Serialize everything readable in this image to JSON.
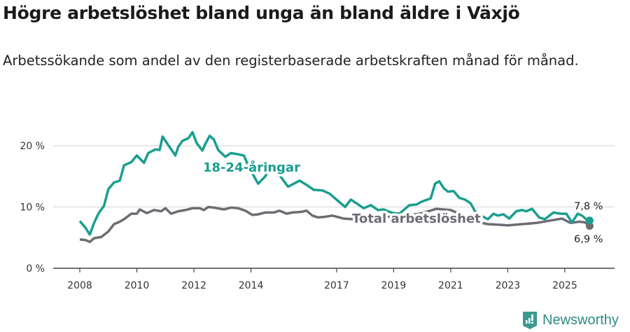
{
  "title": "Högre arbetslöshet bland unga än bland äldre i Växjö",
  "subtitle": "Arbetssökande som andel av den registerbaserade arbetskraften månad för månad.",
  "brand": "Newsworthy",
  "colors": {
    "youth": "#1a9e8f",
    "total": "#6e6c72",
    "grid": "#e0e0e0",
    "brand": "#2f8c83"
  },
  "chart_data": {
    "type": "line",
    "ylim": [
      0,
      22
    ],
    "xlim": [
      2007.6,
      2026.6
    ],
    "yticks": [
      {
        "v": 0,
        "label": "0 %"
      },
      {
        "v": 10,
        "label": "10 %"
      },
      {
        "v": 20,
        "label": "20 %"
      }
    ],
    "xticks": [
      {
        "v": 2008,
        "label": "2008"
      },
      {
        "v": 2010,
        "label": "2010"
      },
      {
        "v": 2012,
        "label": "2012"
      },
      {
        "v": 2014,
        "label": "2014"
      },
      {
        "v": 2017,
        "label": "2017"
      },
      {
        "v": 2019,
        "label": "2019"
      },
      {
        "v": 2021,
        "label": "2021"
      },
      {
        "v": 2023,
        "label": "2023"
      },
      {
        "v": 2025,
        "label": "2025"
      }
    ],
    "series": [
      {
        "name": "18-24-åringar",
        "end_label": "7,8 %",
        "end_value": 7.8,
        "x": [
          2008,
          2008.2,
          2008.35,
          2008.5,
          2008.65,
          2008.85,
          2009,
          2009.2,
          2009.4,
          2009.55,
          2009.8,
          2010,
          2010.25,
          2010.4,
          2010.65,
          2010.8,
          2010.9,
          2011.1,
          2011.35,
          2011.45,
          2011.6,
          2011.8,
          2011.95,
          2012.1,
          2012.3,
          2012.4,
          2012.55,
          2012.7,
          2012.85,
          2013.1,
          2013.3,
          2013.55,
          2013.75,
          2013.95,
          2014.25,
          2014.5,
          2014.65,
          2015,
          2015.3,
          2015.5,
          2015.7,
          2015.95,
          2016.2,
          2016.5,
          2016.75,
          2017,
          2017.3,
          2017.5,
          2017.7,
          2017.95,
          2018.2,
          2018.45,
          2018.65,
          2018.8,
          2019,
          2019.2,
          2019.55,
          2019.8,
          2020,
          2020.3,
          2020.45,
          2020.6,
          2020.75,
          2020.9,
          2021.1,
          2021.3,
          2021.5,
          2021.7,
          2021.85,
          2022.1,
          2022.3,
          2022.5,
          2022.65,
          2022.85,
          2023.05,
          2023.3,
          2023.5,
          2023.65,
          2023.85,
          2024.1,
          2024.3,
          2024.6,
          2024.85,
          2025.05,
          2025.25,
          2025.45,
          2025.6,
          2025.8,
          2025.87
        ],
        "y": [
          7.7,
          6.6,
          5.5,
          7.4,
          8.9,
          10.2,
          12.9,
          14.0,
          14.3,
          16.8,
          17.3,
          18.4,
          17.2,
          18.8,
          19.4,
          19.3,
          21.5,
          20.1,
          18.4,
          19.8,
          20.8,
          21.2,
          22.2,
          20.4,
          19.2,
          20.3,
          21.6,
          21.0,
          19.3,
          18.2,
          18.8,
          18.6,
          18.4,
          16.3,
          13.8,
          15.0,
          16.3,
          15.2,
          13.3,
          13.8,
          14.3,
          13.6,
          12.8,
          12.7,
          12.2,
          11.2,
          10.0,
          11.2,
          10.6,
          9.8,
          10.3,
          9.5,
          9.6,
          9.3,
          9.0,
          8.9,
          10.3,
          10.4,
          10.9,
          11.4,
          13.8,
          14.2,
          13.1,
          12.5,
          12.6,
          11.5,
          11.2,
          10.6,
          9.3,
          8.5,
          8.0,
          8.9,
          8.6,
          8.8,
          8.1,
          9.3,
          9.5,
          9.3,
          9.7,
          8.3,
          8.0,
          9.1,
          8.9,
          8.9,
          7.5,
          8.9,
          8.6,
          7.8,
          7.8
        ]
      },
      {
        "name": "Total arbetslöshet",
        "end_label": "6,9 %",
        "end_value": 6.9,
        "x": [
          2008,
          2008.2,
          2008.35,
          2008.5,
          2008.75,
          2009,
          2009.2,
          2009.4,
          2009.55,
          2009.8,
          2010,
          2010.1,
          2010.35,
          2010.6,
          2010.85,
          2011,
          2011.2,
          2011.45,
          2011.7,
          2011.95,
          2012.2,
          2012.35,
          2012.5,
          2012.7,
          2013.05,
          2013.3,
          2013.55,
          2013.8,
          2014.05,
          2014.25,
          2014.5,
          2014.8,
          2015,
          2015.25,
          2015.45,
          2015.75,
          2015.95,
          2016.15,
          2016.35,
          2016.6,
          2016.85,
          2017.25,
          2017.6,
          2018,
          2018.5,
          2019,
          2019.5,
          2020,
          2020.5,
          2021,
          2021.5,
          2022,
          2022.3,
          2022.7,
          2023,
          2023.5,
          2024,
          2024.5,
          2024.9,
          2025.2,
          2025.5,
          2025.7,
          2025.87
        ],
        "y": [
          4.7,
          4.6,
          4.3,
          4.9,
          5.1,
          6.0,
          7.2,
          7.6,
          8.0,
          8.9,
          8.9,
          9.6,
          9.0,
          9.5,
          9.3,
          9.8,
          8.9,
          9.3,
          9.5,
          9.8,
          9.8,
          9.5,
          10.0,
          9.9,
          9.6,
          9.9,
          9.8,
          9.4,
          8.7,
          8.8,
          9.1,
          9.1,
          9.4,
          8.9,
          9.1,
          9.2,
          9.4,
          8.6,
          8.3,
          8.4,
          8.6,
          8.1,
          8.0,
          8.2,
          8.4,
          8.4,
          8.6,
          9.0,
          9.7,
          9.5,
          8.5,
          7.5,
          7.2,
          7.1,
          7.0,
          7.2,
          7.4,
          7.8,
          8.1,
          7.4,
          7.6,
          7.5,
          6.9
        ]
      }
    ]
  }
}
